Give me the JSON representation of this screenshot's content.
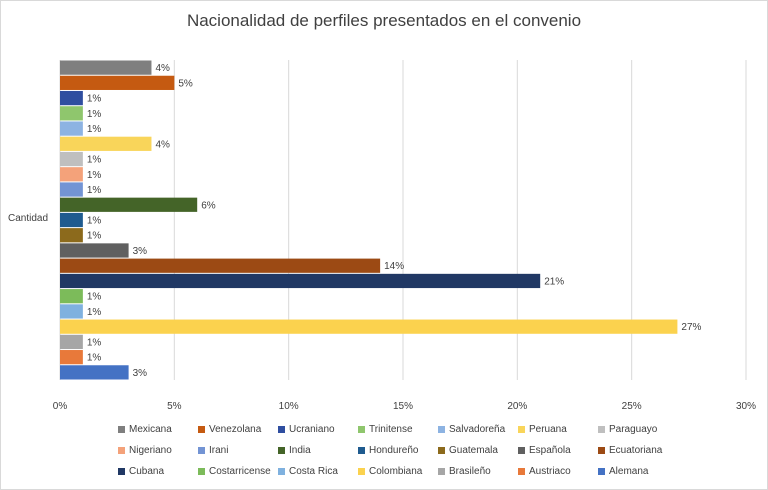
{
  "chart_data": {
    "type": "bar",
    "orientation": "horizontal",
    "title": "Nacionalidad de perfiles presentados en el convenio",
    "category_label": "Cantidad",
    "xlim": [
      0,
      30
    ],
    "x_ticks": [
      "0%",
      "5%",
      "10%",
      "15%",
      "20%",
      "25%",
      "30%"
    ],
    "grid": true,
    "legend_position": "bottom",
    "series": [
      {
        "name": "Mexicana",
        "value": 4,
        "label": "4%",
        "color": "#7f7f7f"
      },
      {
        "name": "Venezolana",
        "value": 5,
        "label": "5%",
        "color": "#c55a11"
      },
      {
        "name": "Ucraniano",
        "value": 1,
        "label": "1%",
        "color": "#2f4ea0"
      },
      {
        "name": "Trinitense",
        "value": 1,
        "label": "1%",
        "color": "#8fc66d"
      },
      {
        "name": "Salvadoreña",
        "value": 1,
        "label": "1%",
        "color": "#8db3e2"
      },
      {
        "name": "Peruana",
        "value": 4,
        "label": "4%",
        "color": "#f9d55a"
      },
      {
        "name": "Paraguayo",
        "value": 1,
        "label": "1%",
        "color": "#bfbfbf"
      },
      {
        "name": "Nigeriano",
        "value": 1,
        "label": "1%",
        "color": "#f4a27a"
      },
      {
        "name": "Irani",
        "value": 1,
        "label": "1%",
        "color": "#7394d4"
      },
      {
        "name": "India",
        "value": 6,
        "label": "6%",
        "color": "#446428"
      },
      {
        "name": "Hondureño",
        "value": 1,
        "label": "1%",
        "color": "#1f5b8f"
      },
      {
        "name": "Guatemala",
        "value": 1,
        "label": "1%",
        "color": "#8c6a1c"
      },
      {
        "name": "Española",
        "value": 3,
        "label": "3%",
        "color": "#606060"
      },
      {
        "name": "Ecuatoriana",
        "value": 14,
        "label": "14%",
        "color": "#9c4a14"
      },
      {
        "name": "Cubana",
        "value": 21,
        "label": "21%",
        "color": "#203864"
      },
      {
        "name": "Costarricense",
        "value": 1,
        "label": "1%",
        "color": "#7cbb5a"
      },
      {
        "name": "Costa Rica",
        "value": 1,
        "label": "1%",
        "color": "#7fb1df"
      },
      {
        "name": "Colombiana",
        "value": 27,
        "label": "27%",
        "color": "#fbd24e"
      },
      {
        "name": "Brasileño",
        "value": 1,
        "label": "1%",
        "color": "#a6a6a6"
      },
      {
        "name": "Austriaco",
        "value": 1,
        "label": "1%",
        "color": "#e8793a"
      },
      {
        "name": "Alemana",
        "value": 3,
        "label": "3%",
        "color": "#4472c4"
      }
    ]
  }
}
